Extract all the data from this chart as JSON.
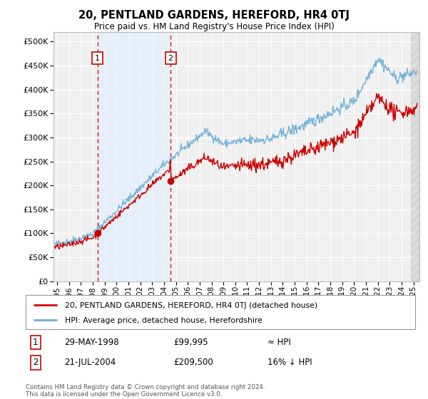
{
  "title": "20, PENTLAND GARDENS, HEREFORD, HR4 0TJ",
  "subtitle": "Price paid vs. HM Land Registry's House Price Index (HPI)",
  "legend_line1": "20, PENTLAND GARDENS, HEREFORD, HR4 0TJ (detached house)",
  "legend_line2": "HPI: Average price, detached house, Herefordshire",
  "transaction1_date": "29-MAY-1998",
  "transaction1_price": "£99,995",
  "transaction1_vs": "≈ HPI",
  "transaction1_year": 1998.41,
  "transaction1_value": 99995,
  "transaction2_date": "21-JUL-2004",
  "transaction2_price": "£209,500",
  "transaction2_vs": "16% ↓ HPI",
  "transaction2_year": 2004.55,
  "transaction2_value": 209500,
  "footer": "Contains HM Land Registry data © Crown copyright and database right 2024.\nThis data is licensed under the Open Government Licence v3.0.",
  "hpi_color": "#6baed6",
  "price_color": "#cc0000",
  "dot_color": "#cc0000",
  "background_color": "#ffffff",
  "plot_bg_color": "#f0f0f0",
  "grid_color": "#ffffff",
  "shade_color": "#ddeeff",
  "hatch_color": "#cccccc",
  "yticks": [
    0,
    50000,
    100000,
    150000,
    200000,
    250000,
    300000,
    350000,
    400000,
    450000,
    500000
  ],
  "ylim": [
    0,
    520000
  ],
  "xlim_start": 1994.7,
  "xlim_end": 2025.5,
  "xticks": [
    1995,
    1996,
    1997,
    1998,
    1999,
    2000,
    2001,
    2002,
    2003,
    2004,
    2005,
    2006,
    2007,
    2008,
    2009,
    2010,
    2011,
    2012,
    2013,
    2014,
    2015,
    2016,
    2017,
    2018,
    2019,
    2020,
    2021,
    2022,
    2023,
    2024,
    2025
  ]
}
